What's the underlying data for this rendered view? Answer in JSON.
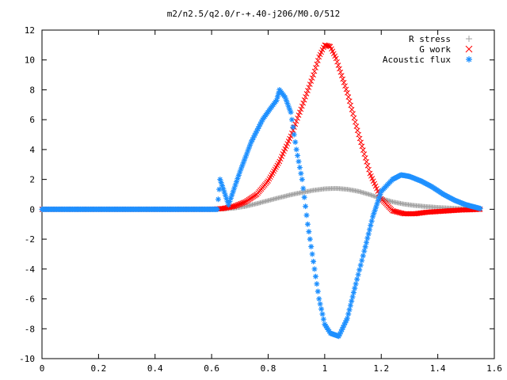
{
  "chart_data": {
    "type": "scatter",
    "title": "m2/n2.5/q2.0/r-+.40-j206/M0.0/512",
    "xlabel": "",
    "ylabel": "",
    "xlim": [
      0,
      1.6
    ],
    "ylim": [
      -10,
      12
    ],
    "x_ticks": [
      "0",
      "0.2",
      "0.4",
      "0.6",
      "0.8",
      "1",
      "1.2",
      "1.4",
      "1.6"
    ],
    "y_ticks": [
      "12",
      "10",
      "8",
      "6",
      "4",
      "2",
      "0",
      "-2",
      "-4",
      "-6",
      "-8",
      "-10"
    ],
    "legend_position": "top-right",
    "grid": false,
    "series": [
      {
        "name": "R stress",
        "marker": "plus",
        "color": "#a0a0a0",
        "points": [
          [
            0,
            0
          ],
          [
            0.6,
            0
          ],
          [
            0.64,
            0.02
          ],
          [
            0.68,
            0.08
          ],
          [
            0.72,
            0.2
          ],
          [
            0.76,
            0.38
          ],
          [
            0.8,
            0.58
          ],
          [
            0.84,
            0.78
          ],
          [
            0.88,
            0.97
          ],
          [
            0.92,
            1.13
          ],
          [
            0.96,
            1.27
          ],
          [
            1.0,
            1.37
          ],
          [
            1.04,
            1.4
          ],
          [
            1.08,
            1.34
          ],
          [
            1.12,
            1.2
          ],
          [
            1.16,
            0.98
          ],
          [
            1.2,
            0.72
          ],
          [
            1.24,
            0.5
          ],
          [
            1.28,
            0.35
          ],
          [
            1.32,
            0.25
          ],
          [
            1.36,
            0.18
          ],
          [
            1.4,
            0.12
          ],
          [
            1.44,
            0.08
          ],
          [
            1.48,
            0.05
          ],
          [
            1.52,
            0.03
          ],
          [
            1.55,
            0.02
          ]
        ]
      },
      {
        "name": "G work",
        "marker": "cross",
        "color": "#ff0000",
        "points": [
          [
            0,
            0
          ],
          [
            0.6,
            0
          ],
          [
            0.64,
            0.05
          ],
          [
            0.68,
            0.2
          ],
          [
            0.72,
            0.5
          ],
          [
            0.76,
            1.0
          ],
          [
            0.8,
            1.9
          ],
          [
            0.84,
            3.2
          ],
          [
            0.88,
            4.9
          ],
          [
            0.92,
            6.9
          ],
          [
            0.96,
            9.0
          ],
          [
            0.98,
            10.2
          ],
          [
            1.0,
            11.0
          ],
          [
            1.02,
            10.9
          ],
          [
            1.04,
            10.1
          ],
          [
            1.08,
            7.8
          ],
          [
            1.12,
            5.0
          ],
          [
            1.16,
            2.4
          ],
          [
            1.2,
            0.7
          ],
          [
            1.24,
            -0.1
          ],
          [
            1.28,
            -0.3
          ],
          [
            1.32,
            -0.3
          ],
          [
            1.36,
            -0.2
          ],
          [
            1.4,
            -0.15
          ],
          [
            1.44,
            -0.1
          ],
          [
            1.48,
            -0.05
          ],
          [
            1.52,
            -0.03
          ],
          [
            1.55,
            0.0
          ]
        ]
      },
      {
        "name": "Acoustic flux",
        "marker": "star",
        "color": "#1e90ff",
        "points": [
          [
            0,
            0
          ],
          [
            0.62,
            0
          ],
          [
            0.63,
            2.0
          ],
          [
            0.66,
            0.3
          ],
          [
            0.7,
            2.5
          ],
          [
            0.74,
            4.5
          ],
          [
            0.78,
            6.0
          ],
          [
            0.81,
            6.8
          ],
          [
            0.83,
            7.3
          ],
          [
            0.84,
            8.0
          ],
          [
            0.86,
            7.5
          ],
          [
            0.88,
            6.5
          ],
          [
            0.9,
            4.0
          ],
          [
            0.92,
            2.0
          ],
          [
            0.94,
            -1.0
          ],
          [
            0.96,
            -3.5
          ],
          [
            0.98,
            -6.0
          ],
          [
            1.0,
            -7.7
          ],
          [
            1.02,
            -8.3
          ],
          [
            1.05,
            -8.5
          ],
          [
            1.08,
            -7.3
          ],
          [
            1.11,
            -5.0
          ],
          [
            1.14,
            -2.8
          ],
          [
            1.17,
            -0.5
          ],
          [
            1.2,
            1.2
          ],
          [
            1.24,
            2.0
          ],
          [
            1.27,
            2.3
          ],
          [
            1.3,
            2.2
          ],
          [
            1.34,
            1.9
          ],
          [
            1.38,
            1.5
          ],
          [
            1.42,
            1.0
          ],
          [
            1.46,
            0.6
          ],
          [
            1.5,
            0.3
          ],
          [
            1.53,
            0.15
          ],
          [
            1.55,
            0.05
          ]
        ]
      }
    ]
  }
}
